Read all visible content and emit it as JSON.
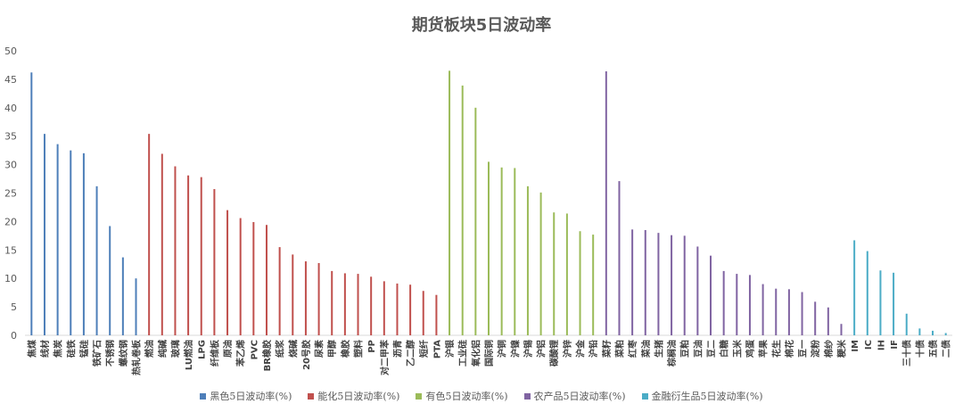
{
  "chart_data": {
    "type": "bar",
    "title": "期货板块5日波动率",
    "ylim": [
      0,
      50
    ],
    "yticks": [
      0,
      5,
      10,
      15,
      20,
      25,
      30,
      35,
      40,
      45,
      50
    ],
    "grid": false,
    "legend_position": "bottom",
    "series": [
      {
        "name": "黑色5日波动率(%)",
        "color": "#4e7fb9",
        "categories": [
          "焦煤",
          "线材",
          "焦炭",
          "硅铁",
          "锰硅",
          "铁矿石",
          "不锈钢",
          "螺纹钢",
          "热轧卷板"
        ],
        "values": [
          46.2,
          35.4,
          33.6,
          32.5,
          32.0,
          26.2,
          19.2,
          13.7,
          10.0
        ]
      },
      {
        "name": "能化5日波动率(%)",
        "color": "#c0504d",
        "categories": [
          "燃油",
          "纯碱",
          "玻璃",
          "LU燃油",
          "LPG",
          "纤维板",
          "原油",
          "苯乙烯",
          "PVC",
          "BR橡胶",
          "纸浆",
          "烧碱",
          "20号胶",
          "尿素",
          "甲醇",
          "橡胶",
          "塑料",
          "PP",
          "对二甲苯",
          "沥青",
          "乙二醇",
          "短纤",
          "PTA"
        ],
        "values": [
          35.4,
          31.9,
          29.7,
          28.1,
          27.8,
          25.7,
          22.0,
          20.6,
          19.9,
          19.4,
          15.5,
          14.2,
          13.0,
          12.7,
          11.3,
          10.9,
          10.8,
          10.3,
          9.5,
          9.1,
          8.9,
          7.8,
          7.1
        ]
      },
      {
        "name": "有色5日波动率(%)",
        "color": "#9bbb59",
        "categories": [
          "沪银",
          "工业硅",
          "氧化铝",
          "国际铜",
          "沪铜",
          "沪镍",
          "沪锡",
          "沪铝",
          "碳酸锂",
          "沪锌",
          "沪金",
          "沪铅"
        ],
        "values": [
          46.5,
          43.9,
          40.0,
          30.5,
          29.5,
          29.4,
          26.2,
          25.1,
          21.6,
          21.4,
          18.3,
          17.7
        ]
      },
      {
        "name": "农产品5日波动率(%)",
        "color": "#8064a2",
        "categories": [
          "菜籽",
          "菜粕",
          "红枣",
          "菜油",
          "生猪",
          "棕榈油",
          "豆粕",
          "豆油",
          "豆二",
          "白糖",
          "玉米",
          "鸡蛋",
          "苹果",
          "花生",
          "棉花",
          "豆一",
          "淀粉",
          "棉纱",
          "粳米"
        ],
        "values": [
          46.4,
          27.1,
          18.6,
          18.5,
          18.0,
          17.6,
          17.5,
          15.6,
          14.0,
          11.3,
          10.8,
          10.6,
          9.0,
          8.2,
          8.1,
          7.6,
          5.9,
          4.9,
          2.0
        ]
      },
      {
        "name": "金融衍生品5日波动率(%)",
        "color": "#4bacc6",
        "categories": [
          "IM",
          "IC",
          "IH",
          "IF",
          "三十债",
          "十债",
          "五债",
          "二债"
        ],
        "values": [
          16.7,
          14.8,
          11.4,
          11.0,
          3.8,
          1.2,
          0.8,
          0.4
        ]
      }
    ]
  }
}
